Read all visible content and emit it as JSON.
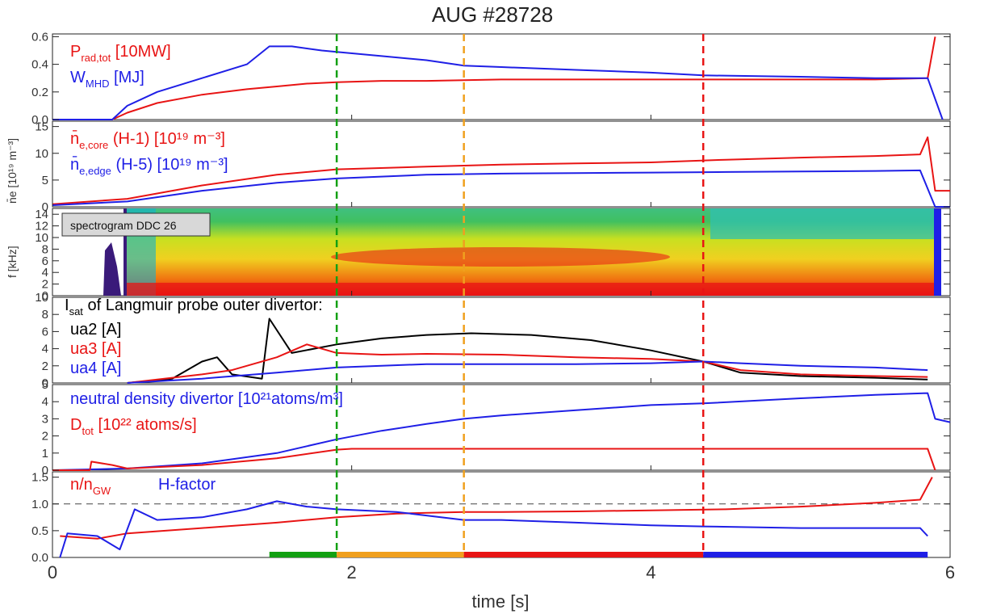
{
  "title": "AUG #28728",
  "xaxis": {
    "label": "time [s]",
    "range": [
      0,
      6
    ],
    "ticks": [
      0,
      2,
      4,
      6
    ],
    "tick_labels": [
      "0",
      "2",
      "4",
      "6"
    ]
  },
  "colors": {
    "red": "#e81414",
    "blue": "#1f1fe6",
    "black": "#000000",
    "green": "#12a012",
    "orange": "#f0a01e",
    "dashed_ref": "#444444"
  },
  "markers": [
    {
      "x": 1.9,
      "color": "#12a012"
    },
    {
      "x": 2.75,
      "color": "#f0a01e"
    },
    {
      "x": 4.35,
      "color": "#e81414"
    }
  ],
  "phase_bar": [
    {
      "from": 1.45,
      "to": 1.9,
      "color": "#12a012"
    },
    {
      "from": 1.9,
      "to": 2.75,
      "color": "#f0a01e"
    },
    {
      "from": 2.75,
      "to": 4.35,
      "color": "#e81414"
    },
    {
      "from": 4.35,
      "to": 5.85,
      "color": "#1f1fe6"
    }
  ],
  "panels": {
    "p1": {
      "ylim": [
        0,
        0.62
      ],
      "ytick_labels": [
        "0.0",
        "0.2",
        "0.4",
        "0.6"
      ],
      "legend": [
        {
          "main": "P",
          "sub": "rad,tot",
          "rest": " [10MW]",
          "color": "#e81414"
        },
        {
          "main": "W",
          "sub": "MHD",
          "rest": " [MJ]",
          "color": "#1f1fe6"
        }
      ]
    },
    "p2": {
      "ylim": [
        0,
        16
      ],
      "ytick_labels": [
        "0",
        "5",
        "10",
        "15"
      ],
      "ylabel": "n̄e [10¹⁹ m⁻³]",
      "legend": [
        {
          "main": "n̄",
          "sub": "e,core",
          "rest": " (H-1) [10¹⁹ m⁻³]",
          "color": "#e81414"
        },
        {
          "main": "n̄",
          "sub": "e,edge",
          "rest": " (H-5) [10¹⁹ m⁻³]",
          "color": "#1f1fe6"
        }
      ]
    },
    "p3": {
      "ylim": [
        0,
        15
      ],
      "ytick_labels": [
        "0",
        "2",
        "4",
        "6",
        "8",
        "10",
        "12",
        "14"
      ],
      "ylabel": "f [kHz]",
      "box_label": "spectrogram DDC 26"
    },
    "p4": {
      "ylim": [
        0,
        10
      ],
      "ytick_labels": [
        "0",
        "2",
        "4",
        "6",
        "8",
        "10"
      ],
      "heading_main": "I",
      "heading_sub": "sat",
      "heading_rest": " of Langmuir probe outer divertor:",
      "legend": [
        {
          "text": "ua2 [A]",
          "color": "#000000"
        },
        {
          "text": "ua3 [A]",
          "color": "#e81414"
        },
        {
          "text": "ua4 [A]",
          "color": "#1f1fe6"
        }
      ]
    },
    "p5": {
      "ylim": [
        0,
        5
      ],
      "ytick_labels": [
        "0",
        "1",
        "2",
        "3",
        "4",
        "5"
      ],
      "legend_line1": "neutral density divertor [10²¹atoms/m³]",
      "legend_line2_main": "D",
      "legend_line2_sub": "tot",
      "legend_line2_rest": " [10²² atoms/s]"
    },
    "p6": {
      "ylim": [
        0,
        1.6
      ],
      "ytick_labels": [
        "0.0",
        "0.5",
        "1.0",
        "1.5"
      ],
      "ref_line": 1.0,
      "legend": [
        {
          "main": "n/n",
          "sub": "GW",
          "color": "#e81414"
        },
        {
          "main": "H-factor",
          "sub": "",
          "color": "#1f1fe6"
        }
      ]
    }
  },
  "chart_data": {
    "type": "line",
    "title": "AUG #28728",
    "xlabel": "time [s]",
    "xlim": [
      0,
      6
    ],
    "grid": false,
    "series": [
      {
        "panel": "p1",
        "name": "P rad,tot [10MW]",
        "color": "#e81414",
        "x": [
          0,
          0.4,
          0.5,
          0.7,
          1.0,
          1.3,
          1.5,
          1.7,
          1.9,
          2.2,
          2.5,
          3.0,
          3.5,
          4.0,
          4.5,
          5.0,
          5.5,
          5.85,
          5.9
        ],
        "y": [
          0.0,
          0.0,
          0.05,
          0.12,
          0.18,
          0.22,
          0.24,
          0.26,
          0.27,
          0.28,
          0.28,
          0.29,
          0.29,
          0.29,
          0.29,
          0.29,
          0.29,
          0.3,
          0.6
        ]
      },
      {
        "panel": "p1",
        "name": "W MHD [MJ]",
        "color": "#1f1fe6",
        "x": [
          0,
          0.4,
          0.5,
          0.7,
          1.0,
          1.3,
          1.45,
          1.6,
          1.8,
          1.9,
          2.2,
          2.5,
          2.75,
          3.0,
          3.5,
          4.0,
          4.35,
          5.0,
          5.5,
          5.85,
          5.95
        ],
        "y": [
          0.0,
          0.0,
          0.1,
          0.2,
          0.3,
          0.4,
          0.53,
          0.53,
          0.5,
          0.49,
          0.46,
          0.43,
          0.39,
          0.38,
          0.36,
          0.34,
          0.32,
          0.31,
          0.3,
          0.3,
          0.0
        ]
      },
      {
        "panel": "p2",
        "name": "n e,core (H-1)",
        "color": "#e81414",
        "x": [
          0,
          0.5,
          1.0,
          1.5,
          1.9,
          2.5,
          3.0,
          3.5,
          4.0,
          4.5,
          5.0,
          5.5,
          5.8,
          5.85,
          5.9,
          6.0
        ],
        "y": [
          0.5,
          1.5,
          4.0,
          6.0,
          7.0,
          7.5,
          7.9,
          8.1,
          8.3,
          8.8,
          9.2,
          9.5,
          9.8,
          13.0,
          3.0,
          3.0
        ]
      },
      {
        "panel": "p2",
        "name": "n e,edge (H-5)",
        "color": "#1f1fe6",
        "x": [
          0,
          0.5,
          1.0,
          1.5,
          1.9,
          2.5,
          3.0,
          3.5,
          4.0,
          4.5,
          5.0,
          5.5,
          5.8,
          5.9,
          6.0
        ],
        "y": [
          0.3,
          1.0,
          3.0,
          4.5,
          5.3,
          6.0,
          6.2,
          6.3,
          6.4,
          6.5,
          6.6,
          6.7,
          6.8,
          0.0,
          0.0
        ]
      },
      {
        "panel": "p4",
        "name": "ua2 [A]",
        "color": "#000000",
        "x": [
          0.5,
          0.8,
          1.0,
          1.1,
          1.2,
          1.4,
          1.45,
          1.6,
          1.9,
          2.2,
          2.5,
          2.8,
          3.2,
          3.6,
          4.0,
          4.35,
          4.6,
          5.0,
          5.5,
          5.85
        ],
        "y": [
          0.0,
          0.5,
          2.5,
          3.0,
          1.0,
          0.5,
          7.5,
          3.5,
          4.5,
          5.2,
          5.6,
          5.8,
          5.6,
          5.0,
          3.8,
          2.5,
          1.2,
          0.8,
          0.6,
          0.4
        ]
      },
      {
        "panel": "p4",
        "name": "ua3 [A]",
        "color": "#e81414",
        "x": [
          0.5,
          1.0,
          1.2,
          1.5,
          1.7,
          1.9,
          2.2,
          2.5,
          3.0,
          3.5,
          4.0,
          4.35,
          4.6,
          5.0,
          5.5,
          5.85
        ],
        "y": [
          0.0,
          1.0,
          1.5,
          3.0,
          4.5,
          3.5,
          3.3,
          3.4,
          3.3,
          3.0,
          2.8,
          2.5,
          1.5,
          1.0,
          0.8,
          0.7
        ]
      },
      {
        "panel": "p4",
        "name": "ua4 [A]",
        "color": "#1f1fe6",
        "x": [
          0.5,
          1.0,
          1.5,
          1.9,
          2.2,
          2.5,
          3.0,
          3.5,
          4.0,
          4.35,
          4.6,
          5.0,
          5.5,
          5.85
        ],
        "y": [
          0.0,
          0.5,
          1.2,
          1.8,
          2.0,
          2.2,
          2.2,
          2.2,
          2.3,
          2.5,
          2.3,
          2.0,
          1.8,
          1.5
        ]
      },
      {
        "panel": "p5",
        "name": "neutral density divertor",
        "color": "#1f1fe6",
        "x": [
          0,
          0.5,
          1.0,
          1.5,
          1.9,
          2.2,
          2.5,
          2.75,
          3.0,
          3.5,
          4.0,
          4.35,
          5.0,
          5.5,
          5.85,
          5.9,
          6.0
        ],
        "y": [
          0.0,
          0.1,
          0.4,
          1.0,
          1.8,
          2.3,
          2.7,
          3.0,
          3.2,
          3.5,
          3.8,
          3.9,
          4.2,
          4.4,
          4.5,
          3.0,
          2.8
        ]
      },
      {
        "panel": "p5",
        "name": "D tot [10²² atoms/s]",
        "color": "#e81414",
        "x": [
          0,
          0.25,
          0.26,
          0.4,
          0.5,
          1.0,
          1.5,
          1.9,
          2.0,
          3.0,
          4.0,
          5.0,
          5.85,
          5.9
        ],
        "y": [
          0.0,
          0.0,
          0.5,
          0.3,
          0.1,
          0.3,
          0.7,
          1.2,
          1.25,
          1.25,
          1.25,
          1.25,
          1.25,
          0.0
        ]
      },
      {
        "panel": "p6",
        "name": "n/n GW",
        "color": "#e81414",
        "x": [
          0.05,
          0.3,
          0.5,
          1.0,
          1.5,
          1.9,
          2.3,
          2.75,
          3.0,
          3.5,
          4.0,
          4.5,
          5.0,
          5.5,
          5.8,
          5.88
        ],
        "y": [
          0.4,
          0.35,
          0.45,
          0.55,
          0.65,
          0.75,
          0.82,
          0.85,
          0.85,
          0.86,
          0.88,
          0.9,
          0.95,
          1.02,
          1.08,
          1.5
        ]
      },
      {
        "panel": "p6",
        "name": "H-factor",
        "color": "#1f1fe6",
        "x": [
          0.05,
          0.1,
          0.3,
          0.45,
          0.55,
          0.7,
          1.0,
          1.3,
          1.5,
          1.7,
          1.9,
          2.3,
          2.75,
          3.0,
          3.5,
          4.0,
          4.35,
          5.0,
          5.5,
          5.8,
          5.85
        ],
        "y": [
          0.0,
          0.45,
          0.4,
          0.15,
          0.9,
          0.7,
          0.75,
          0.9,
          1.05,
          0.95,
          0.9,
          0.85,
          0.7,
          0.7,
          0.65,
          0.6,
          0.58,
          0.55,
          0.55,
          0.55,
          0.4
        ]
      }
    ],
    "spectrogram": {
      "panel": "p3",
      "x_range": [
        0.0,
        5.95
      ],
      "y_range": [
        0,
        15
      ],
      "colormap": [
        "#ffffff",
        "#3a1a7a",
        "#1f1fe6",
        "#10b0d0",
        "#40c060",
        "#c8e020",
        "#f0d020",
        "#f07010",
        "#e81414"
      ]
    }
  }
}
